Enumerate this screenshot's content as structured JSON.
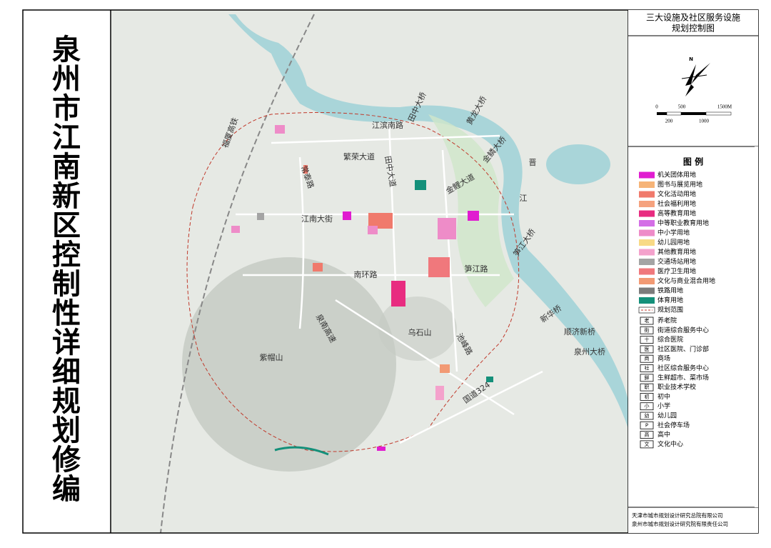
{
  "title": "泉州市江南新区控制性详细规划修编",
  "panel": {
    "title_lines": [
      "三大设施及社区服务设施",
      "规划控制图"
    ],
    "north": "N",
    "scale_top": [
      "0",
      "500",
      "1500M"
    ],
    "scale_bottom": [
      "200",
      "1000"
    ],
    "legend_title": "图 例",
    "land_use": [
      {
        "label": "机关团体用地",
        "color": "#e01cd0"
      },
      {
        "label": "图书与展览用地",
        "color": "#f6b478"
      },
      {
        "label": "文化活动用地",
        "color": "#f07a6c"
      },
      {
        "label": "社会福利用地",
        "color": "#f5a27e"
      },
      {
        "label": "高等教育用地",
        "color": "#e82c80"
      },
      {
        "label": "中等职业教育用地",
        "color": "#d46ee6"
      },
      {
        "label": "中小学用地",
        "color": "#ee8cc8"
      },
      {
        "label": "幼儿园用地",
        "color": "#f8da86"
      },
      {
        "label": "其他教育用地",
        "color": "#f4a2cc"
      },
      {
        "label": "交通场站用地",
        "color": "#a4a4a4"
      },
      {
        "label": "医疗卫生用地",
        "color": "#f0787c"
      },
      {
        "label": "文化与商业混合用地",
        "color": "#f29a74"
      },
      {
        "label": "铁路用地",
        "color": "#7c7c7c"
      },
      {
        "label": "体育用地",
        "color": "#14907a"
      },
      {
        "label": "规划范围",
        "color": "#c0392b"
      }
    ],
    "facilities": [
      {
        "symbol": "老",
        "label": "养老院"
      },
      {
        "symbol": "街",
        "label": "街道综合服务中心"
      },
      {
        "symbol": "十",
        "label": "综合医院"
      },
      {
        "symbol": "医",
        "label": "社区医院、门诊部"
      },
      {
        "symbol": "商",
        "label": "商场"
      },
      {
        "symbol": "社",
        "label": "社区综合服务中心"
      },
      {
        "symbol": "鲜",
        "label": "生鲜超市、菜市场"
      },
      {
        "symbol": "职",
        "label": "职业技术学校"
      },
      {
        "symbol": "初",
        "label": "初中"
      },
      {
        "symbol": "小",
        "label": "小学"
      },
      {
        "symbol": "幼",
        "label": "幼儿园"
      },
      {
        "symbol": "P",
        "label": "社会停车场"
      },
      {
        "symbol": "高",
        "label": "高中"
      },
      {
        "symbol": "文",
        "label": "文化中心"
      }
    ],
    "credits": [
      "天津市城市规划设计研究总院有限公司",
      "泉州市城市规划设计研究院有限责任公司"
    ]
  },
  "map_labels": [
    "江滨南路",
    "田中大桥",
    "黄龙大桥",
    "繁荣大道",
    "田中大道",
    "金鳞大桥",
    "金鲤大道",
    "晋",
    "江",
    "常泰路",
    "江南大街",
    "南环路",
    "笋江路",
    "笋江大桥",
    "新华桥",
    "顺济新桥",
    "泉州大桥",
    "乌石山",
    "紫帽山",
    "泉南高速",
    "池峰路",
    "国道324",
    "福厦高铁"
  ]
}
